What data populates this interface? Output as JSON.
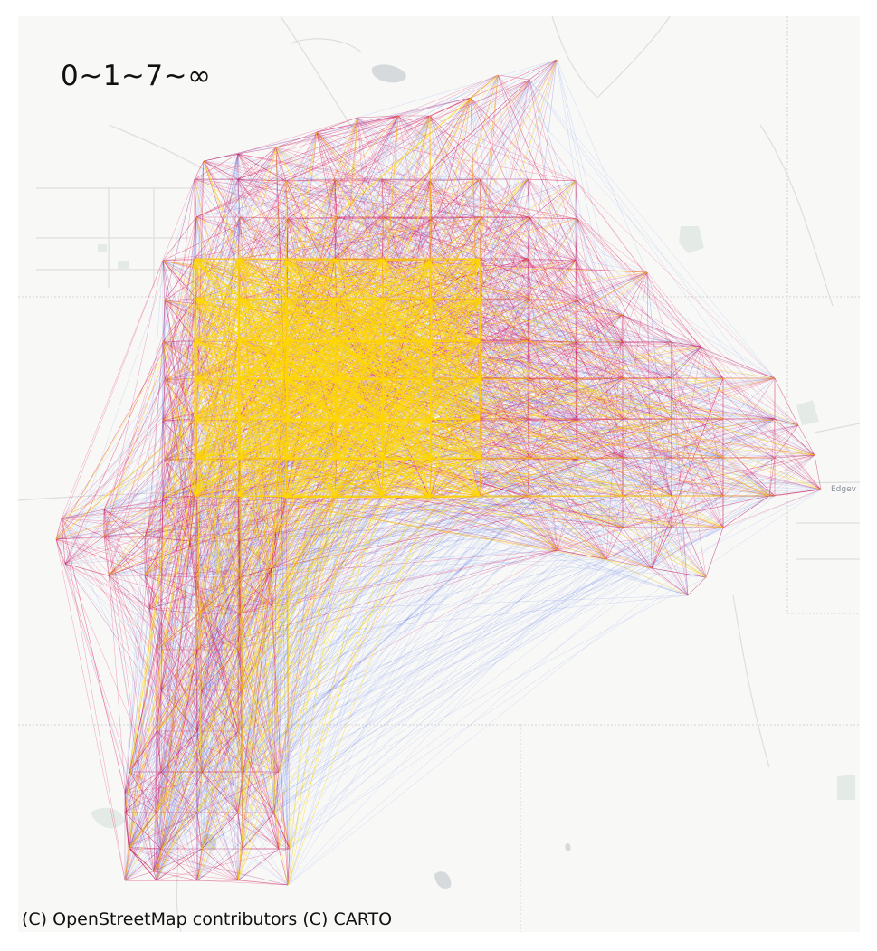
{
  "map": {
    "title": "0~1~7~∞",
    "attribution": "(C) OpenStreetMap contributors (C) CARTO",
    "place_labels": {
      "edgewood": "Edgev"
    },
    "basemap_style": "light-gray",
    "colors": {
      "background": "#f8f8f7",
      "water": "#d7dadc",
      "park": "#e4eae6",
      "road": "#dedede",
      "boundary": "#c9c9c9",
      "edge_low": "#4a6ee8",
      "edge_mid": "#e0155a",
      "edge_high": "#ffd800"
    }
  }
}
